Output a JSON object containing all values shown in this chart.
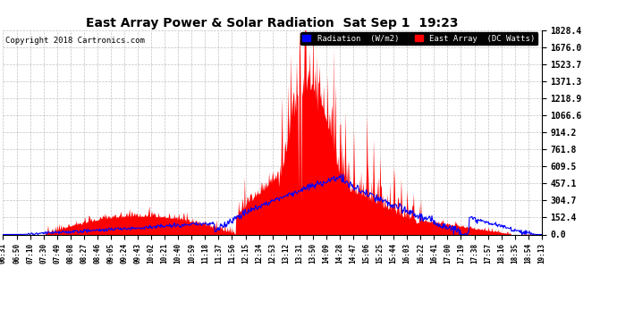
{
  "title": "East Array Power & Solar Radiation  Sat Sep 1  19:23",
  "copyright": "Copyright 2018 Cartronics.com",
  "legend_radiation": "Radiation  (W/m2)",
  "legend_east": "East Array  (DC Watts)",
  "radiation_color": "#0000ff",
  "east_color": "#ff0000",
  "background_color": "#ffffff",
  "plot_bg_color": "#ffffff",
  "grid_color": "#999999",
  "ytick_labels": [
    "0.0",
    "152.4",
    "304.7",
    "457.1",
    "609.5",
    "761.8",
    "914.2",
    "1066.6",
    "1218.9",
    "1371.3",
    "1523.7",
    "1676.0",
    "1828.4"
  ],
  "ytick_values": [
    0.0,
    152.4,
    304.7,
    457.1,
    609.5,
    761.8,
    914.2,
    1066.6,
    1218.9,
    1371.3,
    1523.7,
    1676.0,
    1828.4
  ],
  "ymax": 1828.4,
  "ymin": 0.0,
  "xtick_labels": [
    "06:31",
    "06:50",
    "07:10",
    "07:30",
    "07:49",
    "08:08",
    "08:27",
    "08:46",
    "09:05",
    "09:24",
    "09:43",
    "10:02",
    "10:21",
    "10:40",
    "10:59",
    "11:18",
    "11:37",
    "11:56",
    "12:15",
    "12:34",
    "12:53",
    "13:12",
    "13:31",
    "13:50",
    "14:09",
    "14:28",
    "14:47",
    "15:06",
    "15:25",
    "15:44",
    "16:03",
    "16:22",
    "16:41",
    "17:00",
    "17:19",
    "17:38",
    "17:57",
    "18:16",
    "18:35",
    "18:54",
    "19:13"
  ],
  "n_points": 820
}
